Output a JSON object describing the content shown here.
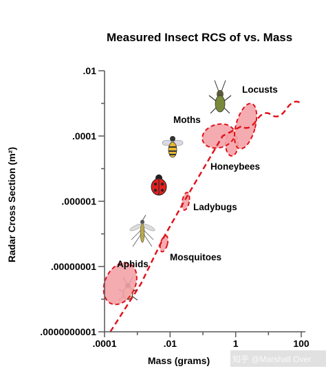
{
  "chart_data": {
    "type": "scatter",
    "title": "Measured Insect RCS of vs. Mass",
    "xlabel": "Mass (grams)",
    "ylabel": "Radar Cross Section (m²)",
    "xscale": "log",
    "yscale": "log",
    "xlim": [
      0.0001,
      100
    ],
    "ylim": [
      1e-10,
      0.01
    ],
    "x_ticks": [
      {
        "value": 0.0001,
        "label": ".0001"
      },
      {
        "value": 0.01,
        "label": ".01"
      },
      {
        "value": 1,
        "label": "1"
      },
      {
        "value": 100,
        "label": "100"
      }
    ],
    "y_ticks": [
      {
        "value": 0.01,
        "label": ".01"
      },
      {
        "value": 0.0001,
        "label": ".0001"
      },
      {
        "value": 1e-06,
        "label": ".000001"
      },
      {
        "value": 1e-08,
        "label": ".00000001"
      },
      {
        "value": 1e-10,
        "label": ".0000000001"
      }
    ],
    "grid": false,
    "regions": [
      {
        "name": "Aphids",
        "x": 0.0003,
        "y": 3e-09,
        "color": "#f4a3a8"
      },
      {
        "name": "Mosquitoes",
        "x": 0.0065,
        "y": 5e-08,
        "color": "#f4a3a8"
      },
      {
        "name": "Ladybugs",
        "x": 0.03,
        "y": 1e-06,
        "color": "#f4a3a8"
      },
      {
        "name": "Honeybees",
        "x": 0.35,
        "y": 0.0001,
        "color": "#f4a3a8"
      },
      {
        "name": "Moths",
        "x": 0.3,
        "y": 0.0001,
        "color": "#f4a3a8"
      },
      {
        "name": "Locusts",
        "x": 2,
        "y": 0.0002,
        "color": "#f4a3a8"
      }
    ],
    "trend": {
      "style": "dashed",
      "color": "#e0141c",
      "points": [
        [
          0.00015,
          1e-10
        ],
        [
          0.0013,
          3e-09
        ],
        [
          0.006,
          7e-08
        ],
        [
          0.03,
          1.2e-06
        ],
        [
          0.4,
          0.0001
        ],
        [
          1.5,
          0.0002
        ],
        [
          100,
          0.001
        ]
      ]
    }
  },
  "watermark": "知乎 @Marshall Over",
  "colors": {
    "region_fill": "#f4a3a8",
    "region_stroke": "#e0141c",
    "axis": "#555555"
  }
}
